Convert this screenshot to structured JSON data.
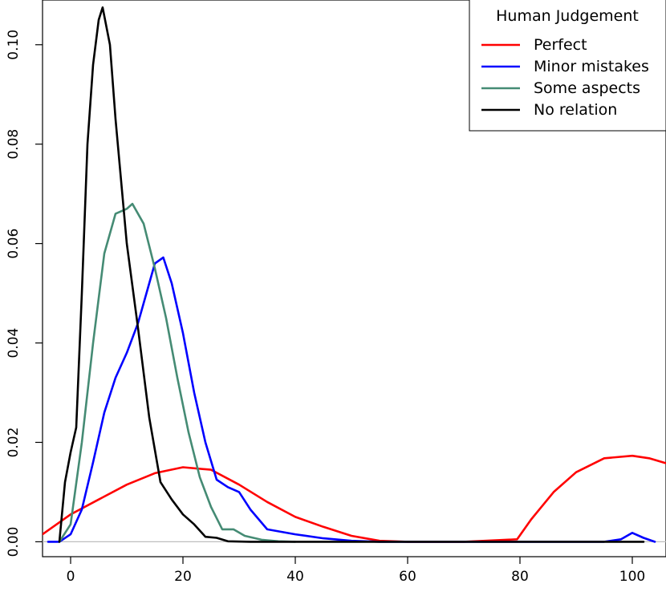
{
  "chart_data": {
    "type": "line",
    "title": "",
    "xlabel": "",
    "ylabel": "",
    "xlim": [
      -5,
      106
    ],
    "ylim": [
      -0.003,
      0.109
    ],
    "x_ticks": [
      0,
      20,
      40,
      60,
      80,
      100
    ],
    "x_tick_labels": [
      "0",
      "20",
      "40",
      "60",
      "80",
      "100"
    ],
    "y_ticks": [
      0.0,
      0.02,
      0.04,
      0.06,
      0.08,
      0.1
    ],
    "y_tick_labels": [
      "0.00",
      "0.02",
      "0.04",
      "0.06",
      "0.08",
      "0.10"
    ],
    "grid": false,
    "baseline_y": 0,
    "legend": {
      "title": "Human Judgement",
      "position": "top-right"
    },
    "series": [
      {
        "name": "Perfect",
        "color": "#ff0000",
        "points": [
          [
            -5,
            0.0015
          ],
          [
            0,
            0.0055
          ],
          [
            5,
            0.0085
          ],
          [
            10,
            0.0115
          ],
          [
            15,
            0.0138
          ],
          [
            20,
            0.015
          ],
          [
            25,
            0.0145
          ],
          [
            30,
            0.0115
          ],
          [
            35,
            0.008
          ],
          [
            40,
            0.005
          ],
          [
            45,
            0.003
          ],
          [
            50,
            0.0012
          ],
          [
            55,
            0.0002
          ],
          [
            60,
            0.0
          ],
          [
            70,
            0.0
          ],
          [
            79.5,
            0.0005
          ],
          [
            82,
            0.0045
          ],
          [
            86,
            0.01
          ],
          [
            90,
            0.014
          ],
          [
            95,
            0.0168
          ],
          [
            100,
            0.0173
          ],
          [
            103,
            0.0168
          ],
          [
            106,
            0.0158
          ]
        ]
      },
      {
        "name": "Minor mistakes",
        "color": "#0000ff",
        "points": [
          [
            -4,
            0.0
          ],
          [
            -2,
            0.0
          ],
          [
            0,
            0.0015
          ],
          [
            2,
            0.0065
          ],
          [
            4,
            0.016
          ],
          [
            6,
            0.026
          ],
          [
            8,
            0.033
          ],
          [
            10,
            0.038
          ],
          [
            12,
            0.044
          ],
          [
            13.5,
            0.05
          ],
          [
            15,
            0.056
          ],
          [
            16.5,
            0.0572
          ],
          [
            18,
            0.052
          ],
          [
            20,
            0.042
          ],
          [
            22,
            0.03
          ],
          [
            24,
            0.02
          ],
          [
            26,
            0.0125
          ],
          [
            28,
            0.011
          ],
          [
            30,
            0.01
          ],
          [
            32,
            0.0065
          ],
          [
            35,
            0.0025
          ],
          [
            40,
            0.0015
          ],
          [
            45,
            0.0007
          ],
          [
            50,
            0.0002
          ],
          [
            55,
            0.0
          ],
          [
            95,
            0.0
          ],
          [
            98,
            0.0005
          ],
          [
            100,
            0.0018
          ],
          [
            102,
            0.0008
          ],
          [
            104,
            0.0
          ]
        ]
      },
      {
        "name": "Some aspects",
        "color": "#458b74",
        "points": [
          [
            -2,
            0.0
          ],
          [
            0,
            0.0035
          ],
          [
            2,
            0.02
          ],
          [
            4,
            0.04
          ],
          [
            6,
            0.058
          ],
          [
            8,
            0.066
          ],
          [
            10,
            0.067
          ],
          [
            11,
            0.068
          ],
          [
            13,
            0.064
          ],
          [
            15,
            0.055
          ],
          [
            17,
            0.045
          ],
          [
            19,
            0.033
          ],
          [
            21,
            0.022
          ],
          [
            23,
            0.013
          ],
          [
            25,
            0.007
          ],
          [
            27,
            0.0025
          ],
          [
            29,
            0.0025
          ],
          [
            31,
            0.0012
          ],
          [
            34,
            0.0004
          ],
          [
            37,
            0.0001
          ],
          [
            40,
            0.0
          ]
        ]
      },
      {
        "name": "No relation",
        "color": "#000000",
        "points": [
          [
            -2,
            0.0
          ],
          [
            -1,
            0.012
          ],
          [
            0,
            0.018
          ],
          [
            1,
            0.023
          ],
          [
            2,
            0.05
          ],
          [
            3,
            0.08
          ],
          [
            4,
            0.096
          ],
          [
            5,
            0.105
          ],
          [
            5.7,
            0.1075
          ],
          [
            7,
            0.1
          ],
          [
            8,
            0.085
          ],
          [
            10,
            0.06
          ],
          [
            12,
            0.043
          ],
          [
            14,
            0.025
          ],
          [
            16,
            0.012
          ],
          [
            18,
            0.0085
          ],
          [
            20,
            0.0055
          ],
          [
            22,
            0.0035
          ],
          [
            24,
            0.001
          ],
          [
            26,
            0.0008
          ],
          [
            28,
            0.0001
          ],
          [
            32,
            0.0
          ],
          [
            102,
            0.0
          ]
        ]
      }
    ]
  }
}
